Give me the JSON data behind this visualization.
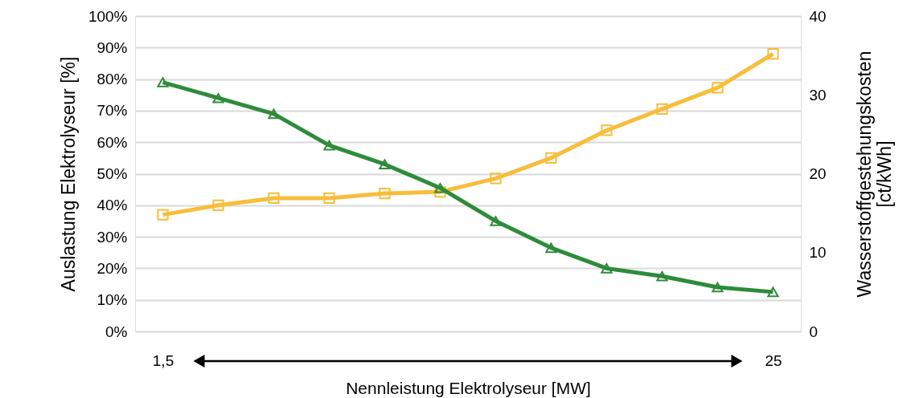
{
  "chart_data": {
    "type": "line",
    "xlabel": "Nennleistung Elektrolyseur [MW]",
    "ylabel": "Auslastung Elektrolyseur [%]",
    "y2label": "Wasserstoffgestehungskosten [ct/kWh]",
    "categories": [
      "1,5",
      null,
      null,
      null,
      null,
      null,
      null,
      null,
      null,
      null,
      null,
      "25"
    ],
    "series": [
      {
        "color": "#2e8b3a",
        "marker": "triangle",
        "values": [
          79,
          74,
          69,
          59,
          53,
          45.5,
          35,
          26.5,
          20,
          17.5,
          14,
          12.5
        ]
      },
      {
        "color": "#f8bd3a",
        "marker": "square",
        "axis": "y2",
        "values": [
          14.8,
          16,
          16.9,
          16.9,
          17.5,
          17.7,
          19.4,
          22,
          25.5,
          28.2,
          30.9,
          35.2
        ]
      }
    ],
    "ylim": [
      0,
      100
    ],
    "yticks": [
      {
        "value": 0,
        "label": "0%"
      },
      {
        "value": 10,
        "label": "10%"
      },
      {
        "value": 20,
        "label": "20%"
      },
      {
        "value": 30,
        "label": "30%"
      },
      {
        "value": 40,
        "label": "40%"
      },
      {
        "value": 50,
        "label": "50%"
      },
      {
        "value": 60,
        "label": "60%"
      },
      {
        "value": 70,
        "label": "70%"
      },
      {
        "value": 80,
        "label": "80%"
      },
      {
        "value": 90,
        "label": "90%"
      },
      {
        "value": 100,
        "label": "100%"
      }
    ],
    "y2lim": [
      0,
      40
    ],
    "y2ticks": [
      0,
      10,
      20,
      30,
      40
    ],
    "grid": "y",
    "legend": false,
    "line_style": "solid"
  }
}
